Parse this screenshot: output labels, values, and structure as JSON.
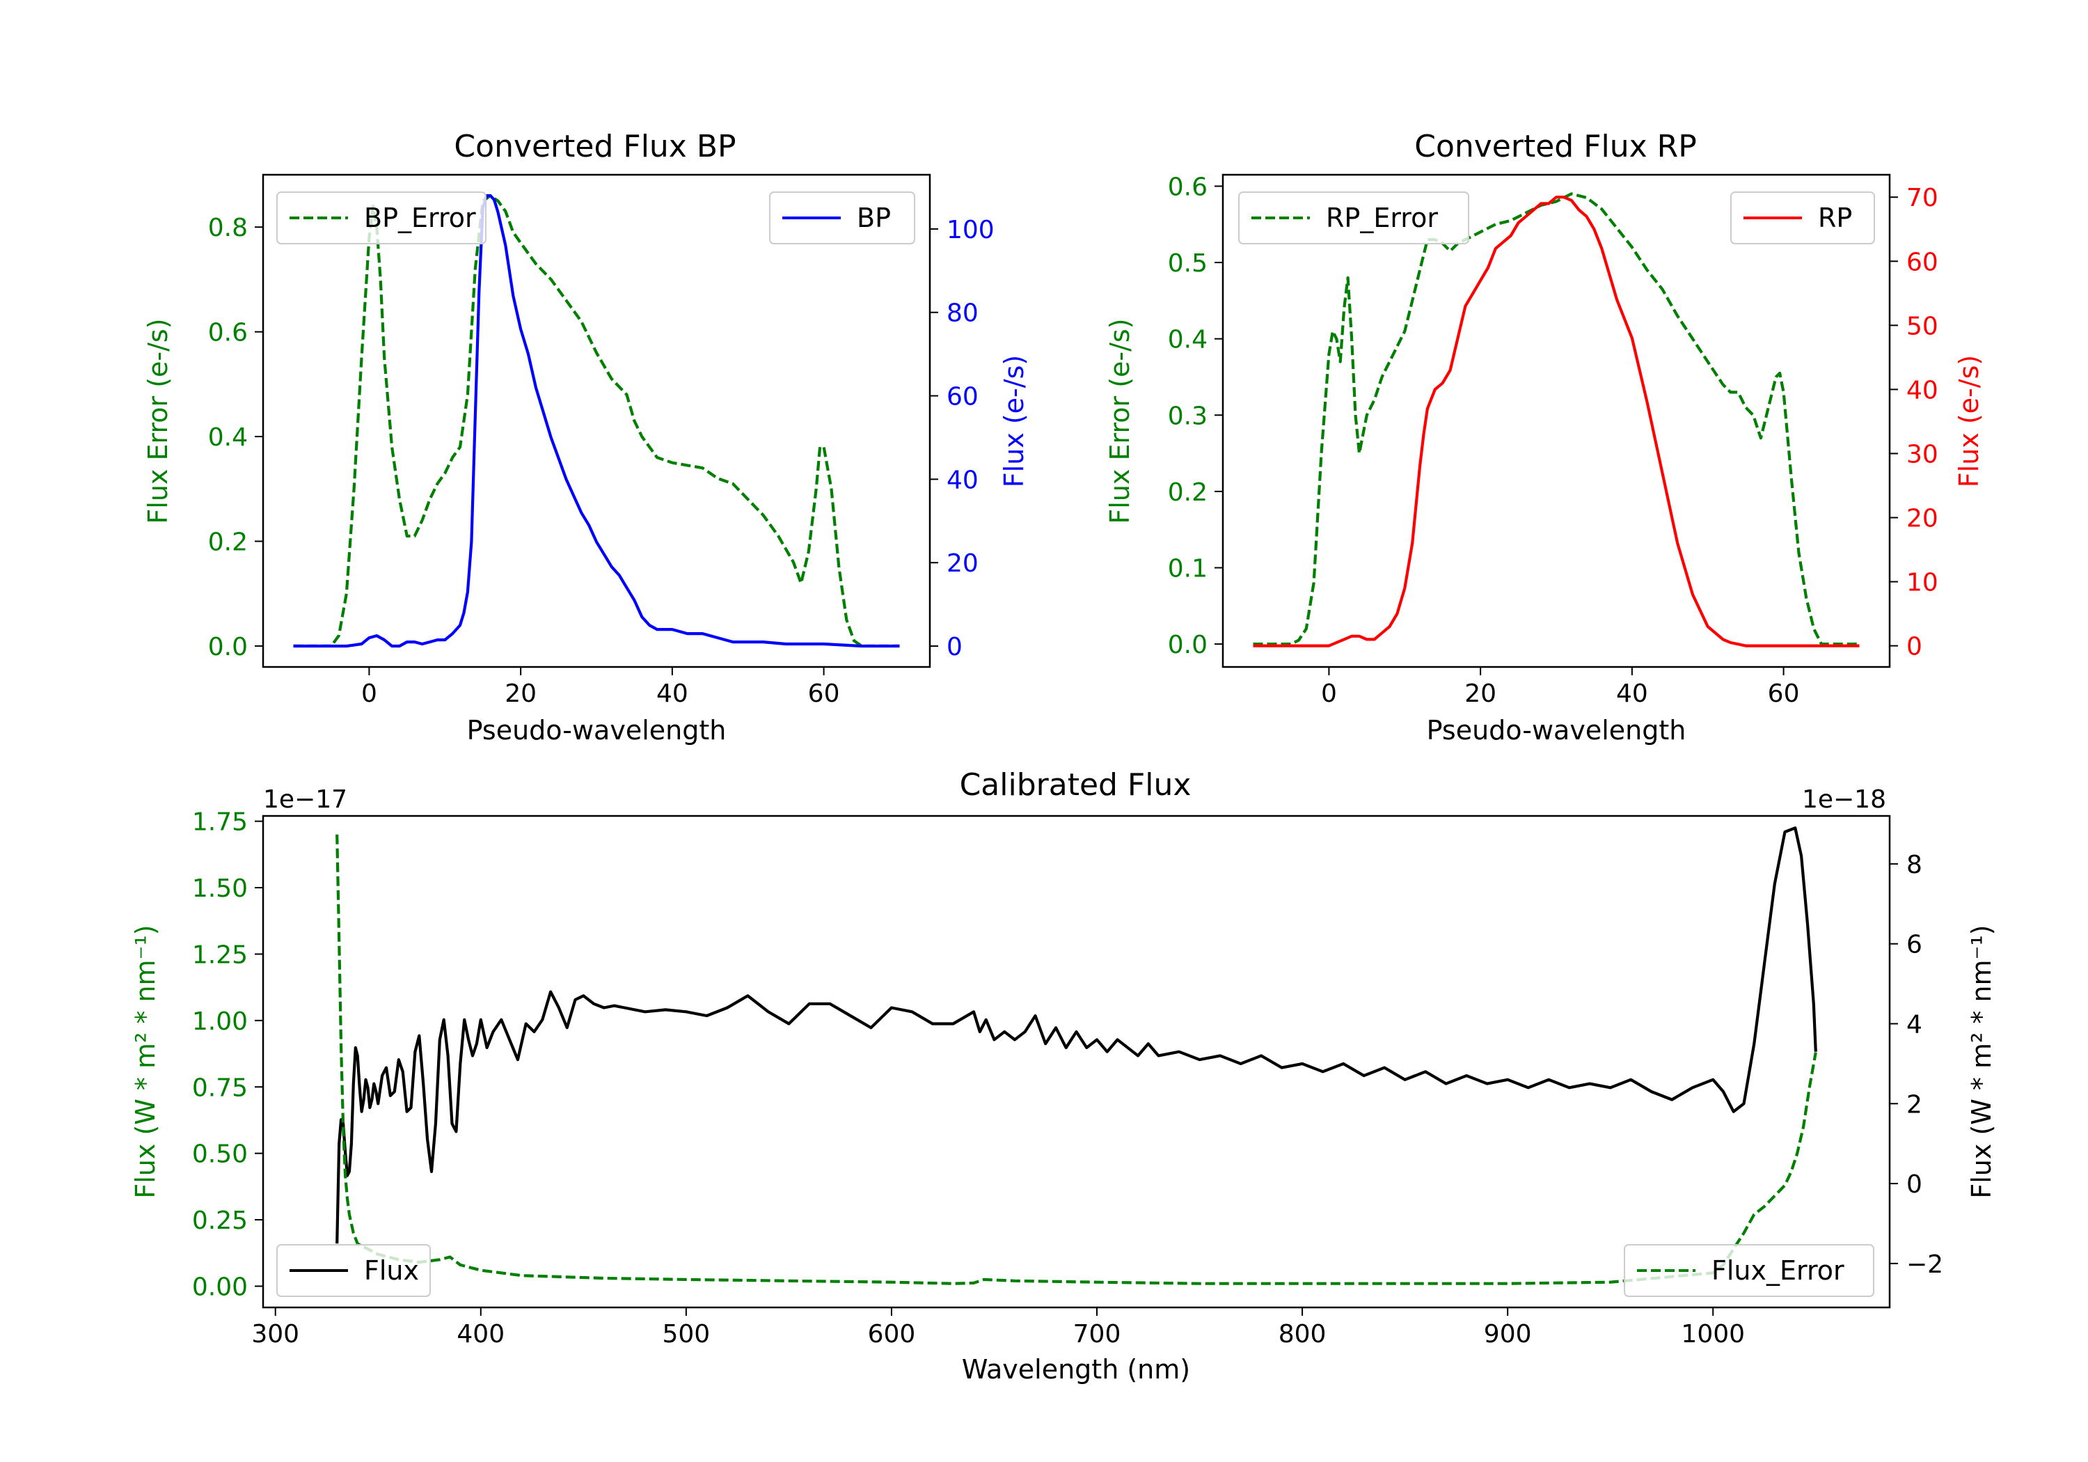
{
  "chart_data": [
    {
      "type": "line",
      "title": "Converted Flux BP",
      "xlabel": "Pseudo-wavelength",
      "ylabel_left": "Flux Error (e-/s)",
      "ylabel_right": "Flux (e-/s)",
      "xlim": [
        -14,
        74
      ],
      "ylim_left": [
        -0.04,
        0.9
      ],
      "ylim_right": [
        -5,
        113
      ],
      "x_ticks": [
        0,
        20,
        40,
        60
      ],
      "y_ticks_left": [
        0.0,
        0.2,
        0.4,
        0.6,
        0.8
      ],
      "y_ticks_right": [
        0,
        20,
        40,
        60,
        80,
        100
      ],
      "legend_left": {
        "label": "BP_Error",
        "placement": "top-left"
      },
      "legend_right": {
        "label": "BP",
        "placement": "top-right"
      },
      "series": [
        {
          "name": "BP_Error",
          "axis": "left",
          "color": "#008000",
          "style": "dashed",
          "x": [
            -10,
            -5,
            -4,
            -3,
            -2,
            -1,
            0,
            0.5,
            1,
            1.5,
            2,
            3,
            4,
            5,
            6,
            7,
            8,
            9,
            10,
            11,
            12,
            13,
            14,
            15,
            16,
            17,
            18,
            19,
            20,
            22,
            24,
            26,
            28,
            30,
            32,
            34,
            35,
            36,
            38,
            40,
            42,
            44,
            46,
            48,
            50,
            52,
            54,
            56,
            57,
            58,
            59,
            59.5,
            60,
            61,
            62,
            63,
            64,
            65,
            70
          ],
          "y": [
            0.0,
            0.0,
            0.02,
            0.1,
            0.3,
            0.55,
            0.78,
            0.84,
            0.8,
            0.7,
            0.55,
            0.38,
            0.28,
            0.21,
            0.21,
            0.24,
            0.28,
            0.31,
            0.33,
            0.36,
            0.38,
            0.48,
            0.72,
            0.85,
            0.86,
            0.85,
            0.83,
            0.79,
            0.77,
            0.73,
            0.7,
            0.66,
            0.62,
            0.56,
            0.51,
            0.48,
            0.43,
            0.4,
            0.36,
            0.35,
            0.345,
            0.34,
            0.32,
            0.31,
            0.28,
            0.25,
            0.21,
            0.16,
            0.12,
            0.18,
            0.3,
            0.38,
            0.38,
            0.3,
            0.15,
            0.05,
            0.01,
            0.0,
            0.0
          ]
        },
        {
          "name": "BP",
          "axis": "right",
          "color": "#0000ff",
          "style": "solid",
          "x": [
            -10,
            -3,
            -1,
            0,
            1,
            2,
            3,
            4,
            5,
            6,
            7,
            8,
            9,
            10,
            11,
            12,
            12.5,
            13,
            13.5,
            14,
            14.5,
            15,
            15.5,
            16,
            16.5,
            17,
            18,
            19,
            20,
            21,
            22,
            23,
            24,
            25,
            26,
            27,
            28,
            29,
            30,
            31,
            32,
            33,
            34,
            35,
            36,
            37,
            38,
            40,
            42,
            44,
            46,
            48,
            50,
            52,
            55,
            60,
            65,
            70
          ],
          "y": [
            0,
            0,
            0.5,
            2,
            2.5,
            1.5,
            0,
            0,
            1,
            1,
            0.5,
            1,
            1.5,
            1.5,
            3,
            5,
            8,
            13,
            25,
            55,
            85,
            105,
            108,
            108,
            107,
            104,
            96,
            84,
            76,
            70,
            62,
            56,
            50,
            45,
            40,
            36,
            32,
            29,
            25,
            22,
            19,
            17,
            14,
            11,
            7,
            5,
            4,
            4,
            3,
            3,
            2,
            1,
            1,
            1,
            0.5,
            0.5,
            0,
            0
          ]
        }
      ]
    },
    {
      "type": "line",
      "title": "Converted Flux RP",
      "xlabel": "Pseudo-wavelength",
      "ylabel_left": "Flux Error (e-/s)",
      "ylabel_right": "Flux (e-/s)",
      "xlim": [
        -14,
        74
      ],
      "ylim_left": [
        -0.03,
        0.615
      ],
      "ylim_right": [
        -3.3,
        73.5
      ],
      "x_ticks": [
        0,
        20,
        40,
        60
      ],
      "y_ticks_left": [
        0.0,
        0.1,
        0.2,
        0.3,
        0.4,
        0.5,
        0.6
      ],
      "y_ticks_right": [
        0,
        10,
        20,
        30,
        40,
        50,
        60,
        70
      ],
      "legend_left": {
        "label": "RP_Error",
        "placement": "top-left"
      },
      "legend_right": {
        "label": "RP",
        "placement": "top-right"
      },
      "series": [
        {
          "name": "RP_Error",
          "axis": "left",
          "color": "#008000",
          "style": "dashed",
          "x": [
            -10,
            -5,
            -4,
            -3,
            -2,
            -1,
            0,
            0.5,
            1,
            1.5,
            2,
            2.5,
            3,
            3.5,
            4,
            5,
            6,
            7,
            8,
            9,
            10,
            11,
            12,
            13,
            14,
            15,
            16,
            17,
            18,
            20,
            22,
            24,
            26,
            28,
            30,
            32,
            34,
            36,
            38,
            40,
            42,
            44,
            46,
            48,
            50,
            52,
            53,
            54,
            55,
            56,
            57,
            58,
            59,
            59.5,
            60,
            61,
            62,
            63,
            64,
            65,
            70
          ],
          "y": [
            0.0,
            0.0,
            0.005,
            0.02,
            0.08,
            0.25,
            0.38,
            0.41,
            0.4,
            0.37,
            0.44,
            0.48,
            0.4,
            0.3,
            0.25,
            0.3,
            0.32,
            0.35,
            0.37,
            0.39,
            0.41,
            0.45,
            0.49,
            0.53,
            0.53,
            0.525,
            0.515,
            0.525,
            0.53,
            0.54,
            0.55,
            0.555,
            0.565,
            0.575,
            0.58,
            0.59,
            0.585,
            0.57,
            0.545,
            0.52,
            0.49,
            0.465,
            0.43,
            0.4,
            0.37,
            0.34,
            0.33,
            0.33,
            0.31,
            0.3,
            0.27,
            0.31,
            0.35,
            0.355,
            0.33,
            0.22,
            0.12,
            0.06,
            0.02,
            0.0,
            0.0
          ]
        },
        {
          "name": "RP",
          "axis": "right",
          "color": "#ff0000",
          "style": "solid",
          "x": [
            -10,
            -3,
            0,
            1,
            2,
            3,
            4,
            5,
            6,
            7,
            8,
            9,
            10,
            11,
            12,
            12.5,
            13,
            14,
            15,
            16,
            17,
            18,
            19,
            20,
            21,
            22,
            23,
            24,
            25,
            26,
            27,
            28,
            29,
            30,
            31,
            32,
            33,
            34,
            35,
            36,
            37,
            38,
            40,
            42,
            44,
            46,
            48,
            50,
            52,
            53,
            55,
            60,
            65,
            70
          ],
          "y": [
            0,
            0,
            0,
            0.5,
            1,
            1.5,
            1.5,
            1,
            1,
            2,
            3,
            5,
            9,
            16,
            28,
            33,
            37,
            40,
            41,
            43,
            48,
            53,
            55,
            57,
            59,
            62,
            63,
            64,
            66,
            67,
            68,
            69,
            69,
            70,
            70,
            69.5,
            68,
            67,
            65,
            62,
            58,
            54,
            48,
            38,
            27,
            16,
            8,
            3,
            1,
            0.5,
            0,
            0,
            0,
            0
          ]
        }
      ]
    },
    {
      "type": "line",
      "title": "Calibrated Flux",
      "xlabel": "Wavelength (nm)",
      "ylabel_left": "Flux (W * m² * nm⁻¹)",
      "ylabel_right": "Flux (W * m² * nm⁻¹)",
      "left_offset_text": "1e−17",
      "right_offset_text": "1e−18",
      "xlim": [
        294,
        1086
      ],
      "ylim_left": [
        -0.08,
        1.77
      ],
      "ylim_right": [
        -3.1,
        9.2
      ],
      "x_ticks": [
        300,
        400,
        500,
        600,
        700,
        800,
        900,
        1000
      ],
      "y_ticks_left": [
        "0.00",
        "0.25",
        "0.50",
        "0.75",
        "1.00",
        "1.25",
        "1.50",
        "1.75"
      ],
      "y_ticks_right": [
        -2,
        0,
        2,
        4,
        6,
        8
      ],
      "legend_left": {
        "label": "Flux",
        "placement": "bottom-left"
      },
      "legend_right": {
        "label": "Flux_Error",
        "placement": "bottom-right"
      },
      "series": [
        {
          "name": "Flux",
          "axis": "right",
          "color": "#000000",
          "style": "solid",
          "x": [
            330,
            331,
            332,
            333,
            334,
            335,
            336,
            337,
            338,
            339,
            340,
            341,
            342,
            343,
            344,
            345,
            346,
            347,
            348,
            349,
            350,
            352,
            354,
            356,
            358,
            360,
            362,
            364,
            366,
            368,
            370,
            372,
            374,
            376,
            378,
            380,
            382,
            384,
            386,
            388,
            390,
            392,
            394,
            396,
            398,
            400,
            403,
            406,
            410,
            414,
            418,
            422,
            426,
            430,
            434,
            438,
            442,
            446,
            450,
            455,
            460,
            465,
            470,
            480,
            490,
            500,
            510,
            520,
            530,
            540,
            550,
            560,
            570,
            580,
            590,
            600,
            610,
            620,
            630,
            640,
            643,
            646,
            650,
            655,
            660,
            665,
            670,
            675,
            680,
            685,
            690,
            695,
            700,
            705,
            710,
            715,
            720,
            725,
            730,
            740,
            750,
            760,
            770,
            780,
            790,
            800,
            810,
            820,
            830,
            840,
            850,
            860,
            870,
            880,
            890,
            900,
            910,
            920,
            930,
            940,
            950,
            960,
            970,
            980,
            990,
            1000,
            1005,
            1010,
            1015,
            1020,
            1025,
            1030,
            1035,
            1040,
            1043,
            1046,
            1049,
            1050
          ],
          "y": [
            -1.5,
            1.0,
            1.6,
            1.5,
            0.8,
            0.2,
            0.3,
            1.0,
            2.5,
            3.4,
            3.2,
            2.4,
            1.8,
            2.1,
            2.6,
            2.4,
            1.9,
            2.1,
            2.5,
            2.3,
            2.0,
            2.7,
            2.9,
            2.2,
            2.3,
            3.1,
            2.8,
            1.8,
            1.9,
            3.3,
            3.7,
            2.5,
            1.1,
            0.3,
            1.5,
            3.6,
            4.1,
            3.2,
            1.5,
            1.3,
            3.0,
            4.1,
            3.6,
            3.2,
            3.5,
            4.1,
            3.4,
            3.8,
            4.1,
            3.6,
            3.1,
            4.0,
            3.8,
            4.1,
            4.8,
            4.4,
            3.9,
            4.6,
            4.7,
            4.5,
            4.4,
            4.45,
            4.4,
            4.3,
            4.35,
            4.3,
            4.2,
            4.4,
            4.7,
            4.3,
            4.0,
            4.5,
            4.5,
            4.2,
            3.9,
            4.4,
            4.3,
            4.0,
            4.0,
            4.3,
            3.8,
            4.1,
            3.6,
            3.8,
            3.6,
            3.8,
            4.2,
            3.5,
            3.9,
            3.4,
            3.8,
            3.4,
            3.6,
            3.3,
            3.6,
            3.4,
            3.2,
            3.5,
            3.2,
            3.3,
            3.1,
            3.2,
            3.0,
            3.2,
            2.9,
            3.0,
            2.8,
            3.0,
            2.7,
            2.9,
            2.6,
            2.8,
            2.5,
            2.7,
            2.5,
            2.6,
            2.4,
            2.6,
            2.4,
            2.5,
            2.4,
            2.6,
            2.3,
            2.1,
            2.4,
            2.6,
            2.3,
            1.8,
            2.0,
            3.5,
            5.5,
            7.5,
            8.8,
            8.9,
            8.2,
            6.5,
            4.5,
            3.3
          ]
        },
        {
          "name": "Flux_Error",
          "axis": "left",
          "color": "#008000",
          "style": "dashed",
          "x": [
            330,
            331,
            332,
            333,
            334,
            335,
            336,
            338,
            340,
            345,
            350,
            360,
            370,
            380,
            385,
            390,
            400,
            420,
            440,
            460,
            500,
            550,
            600,
            630,
            640,
            645,
            660,
            700,
            750,
            800,
            850,
            900,
            950,
            1000,
            1005,
            1010,
            1015,
            1020,
            1025,
            1030,
            1035,
            1038,
            1041,
            1044,
            1047,
            1050
          ],
          "y": [
            1.7,
            1.3,
            0.9,
            0.6,
            0.42,
            0.33,
            0.27,
            0.2,
            0.16,
            0.14,
            0.12,
            0.1,
            0.09,
            0.1,
            0.11,
            0.08,
            0.06,
            0.04,
            0.035,
            0.03,
            0.025,
            0.02,
            0.015,
            0.01,
            0.012,
            0.025,
            0.02,
            0.015,
            0.01,
            0.01,
            0.01,
            0.01,
            0.015,
            0.05,
            0.08,
            0.14,
            0.2,
            0.27,
            0.3,
            0.34,
            0.38,
            0.43,
            0.5,
            0.6,
            0.75,
            0.88
          ]
        }
      ]
    }
  ]
}
